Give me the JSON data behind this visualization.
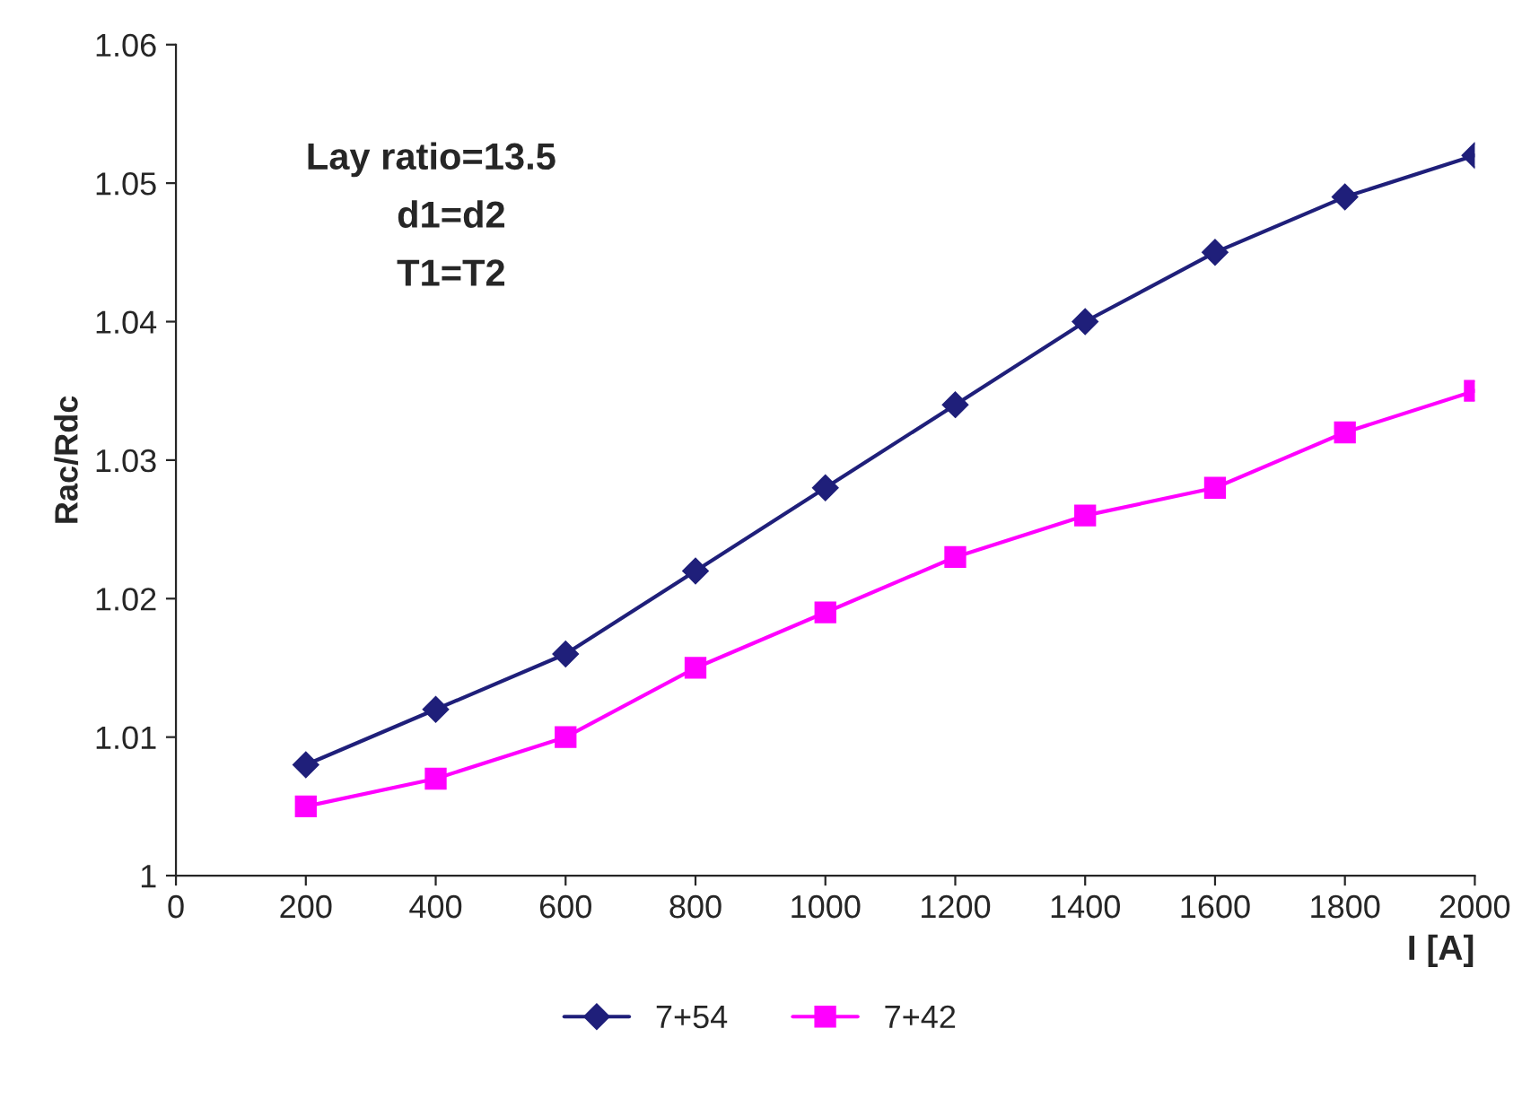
{
  "chart_data": {
    "type": "line",
    "x": [
      200,
      400,
      600,
      800,
      1000,
      1200,
      1400,
      1600,
      1800,
      2000
    ],
    "series": [
      {
        "name": "7+54",
        "color": "#1f1f7a",
        "marker": "diamond",
        "values": [
          1.008,
          1.012,
          1.016,
          1.022,
          1.028,
          1.034,
          1.04,
          1.045,
          1.049,
          1.052
        ]
      },
      {
        "name": "7+42",
        "color": "#ff00ff",
        "marker": "square",
        "values": [
          1.005,
          1.007,
          1.01,
          1.015,
          1.019,
          1.023,
          1.026,
          1.028,
          1.032,
          1.035
        ]
      }
    ],
    "xlabel": "I [A]",
    "ylabel": "Rac/Rdc",
    "annotations": [
      "Lay ratio=13.5",
      "d1=d2",
      "T1=T2"
    ],
    "xlim": [
      0,
      2000
    ],
    "xticks": [
      0,
      200,
      400,
      600,
      800,
      1000,
      1200,
      1400,
      1600,
      1800,
      2000
    ],
    "ylim": [
      1,
      1.06
    ],
    "yticks": [
      1,
      1.01,
      1.02,
      1.03,
      1.04,
      1.05,
      1.06
    ],
    "grid": false,
    "legend": "bottom",
    "line_style": "solid"
  }
}
